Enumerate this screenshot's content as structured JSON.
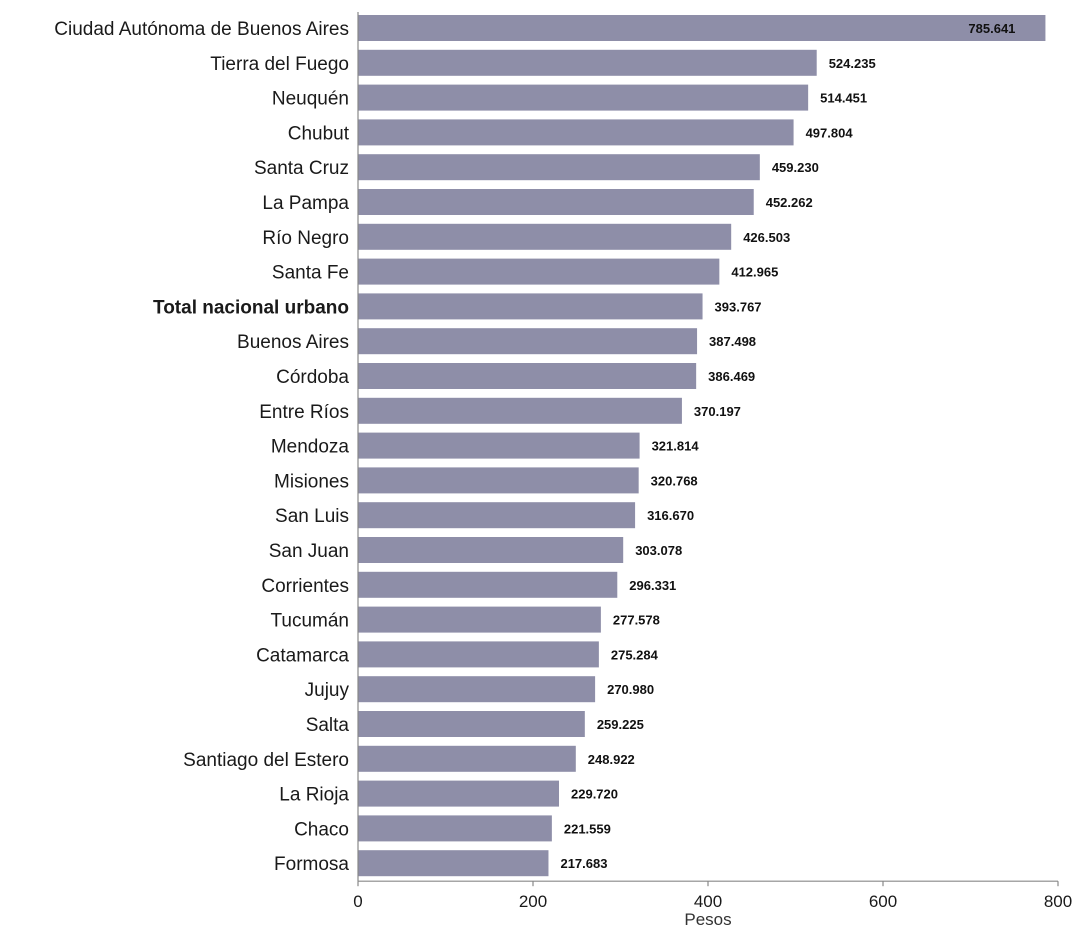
{
  "chart_data": {
    "type": "bar",
    "orientation": "horizontal",
    "title": "",
    "xlabel": "Pesos",
    "ylabel": "",
    "xlim": [
      0,
      800
    ],
    "x_ticks": [
      0,
      200,
      400,
      600,
      800
    ],
    "x_tick_labels": [
      "0",
      "200",
      "400",
      "600",
      "800"
    ],
    "grid": false,
    "bar_color": "#8e8ea8",
    "categories": [
      "Ciudad Autónoma de Buenos Aires",
      "Tierra del Fuego",
      "Neuquén",
      "Chubut",
      "Santa Cruz",
      "La Pampa",
      "Río Negro",
      "Santa Fe",
      "Total nacional urbano",
      "Buenos Aires",
      "Córdoba",
      "Entre Ríos",
      "Mendoza",
      "Misiones",
      "San Luis",
      "San Juan",
      "Corrientes",
      "Tucumán",
      "Catamarca",
      "Jujuy",
      "Salta",
      "Santiago del Estero",
      "La Rioja",
      "Chaco",
      "Formosa"
    ],
    "bold_categories": [
      "Total nacional urbano"
    ],
    "values": [
      785.641,
      524.235,
      514.451,
      497.804,
      459.23,
      452.262,
      426.503,
      412.965,
      393.767,
      387.498,
      386.469,
      370.197,
      321.814,
      320.768,
      316.67,
      303.078,
      296.331,
      277.578,
      275.284,
      270.98,
      259.225,
      248.922,
      229.72,
      221.559,
      217.683
    ],
    "value_labels": [
      "785.641",
      "524.235",
      "514.451",
      "497.804",
      "459.230",
      "452.262",
      "426.503",
      "412.965",
      "393.767",
      "387.498",
      "386.469",
      "370.197",
      "321.814",
      "320.768",
      "316.670",
      "303.078",
      "296.331",
      "277.578",
      "275.284",
      "270.980",
      "259.225",
      "248.922",
      "229.720",
      "221.559",
      "217.683"
    ]
  }
}
